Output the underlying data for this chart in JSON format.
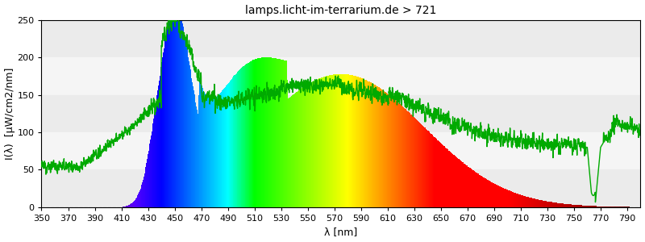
{
  "title": "lamps.licht-im-terrarium.de > 721",
  "xlabel": "λ [nm]",
  "ylabel": "I(λ)  [μW/cm2/nm]",
  "xlim": [
    350,
    800
  ],
  "ylim": [
    0,
    250
  ],
  "yticks": [
    0,
    50,
    100,
    150,
    200,
    250
  ],
  "xticks": [
    350,
    370,
    390,
    410,
    430,
    450,
    470,
    490,
    510,
    530,
    550,
    570,
    590,
    610,
    630,
    650,
    670,
    690,
    710,
    730,
    750,
    770,
    790
  ],
  "line_color": "#00aa00",
  "line_width": 1.0,
  "title_fontsize": 10,
  "axis_fontsize": 9,
  "bg_band_colors": [
    "#ebebeb",
    "#f5f5f5"
  ]
}
